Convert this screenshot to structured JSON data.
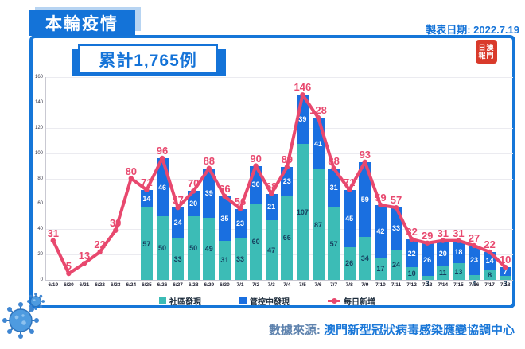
{
  "header": {
    "title": "本輪疫情",
    "made_date": "製表日期: 2022.7.19",
    "badge": "累計1,765例",
    "seal_line1": "日澳",
    "seal_line2": "報門"
  },
  "footer": {
    "source_label": "數據來源:",
    "source_name": "澳門新型冠狀病毒感染應變協調中心"
  },
  "colors": {
    "primary_blue": "#1473d8",
    "bar_blue": "#1a6fe0",
    "bar_teal": "#3cbcb6",
    "line_pink": "#e8486e",
    "seal_red": "#d93a2b",
    "shadow_light_blue": "#b7d4f2"
  },
  "chart_data": {
    "type": "bar",
    "subtype": "stacked bars with daily-new line overlay",
    "title": "本輪疫情 累計1,765例",
    "categories": [
      "6/19",
      "6/20",
      "6/21",
      "6/22",
      "6/23",
      "6/24",
      "6/25",
      "6/26",
      "6/27",
      "6/28",
      "6/29",
      "6/30",
      "7/1",
      "7/2",
      "7/3",
      "7/4",
      "7/5",
      "7/6",
      "7/7",
      "7/8",
      "7/9",
      "7/10",
      "7/11",
      "7/12",
      "7/13",
      "7/14",
      "7/15",
      "7/16",
      "7/17",
      "7/18"
    ],
    "series": [
      {
        "name": "社區發現",
        "type": "bar",
        "color": "#3cbcb6",
        "values": [
          null,
          null,
          null,
          null,
          null,
          null,
          57,
          50,
          33,
          50,
          49,
          31,
          33,
          60,
          47,
          66,
          107,
          87,
          57,
          26,
          34,
          17,
          24,
          10,
          3,
          11,
          13,
          4,
          8,
          3
        ]
      },
      {
        "name": "管控中發現",
        "type": "bar",
        "color": "#1a6fe0",
        "values": [
          null,
          null,
          null,
          null,
          null,
          null,
          14,
          46,
          24,
          20,
          39,
          35,
          23,
          30,
          21,
          23,
          39,
          41,
          31,
          45,
          59,
          42,
          33,
          22,
          26,
          20,
          18,
          23,
          14,
          7
        ]
      },
      {
        "name": "每日新增",
        "type": "line",
        "color": "#e8486e",
        "values": [
          31,
          5,
          13,
          22,
          39,
          80,
          71,
          96,
          57,
          70,
          88,
          66,
          56,
          90,
          68,
          89,
          146,
          128,
          88,
          71,
          93,
          59,
          57,
          32,
          29,
          31,
          31,
          27,
          22,
          10
        ]
      }
    ],
    "ylim": [
      0,
      160
    ],
    "ytick_step": 20,
    "grid": true,
    "legend_position": "bottom",
    "xlabel": "",
    "ylabel": ""
  }
}
